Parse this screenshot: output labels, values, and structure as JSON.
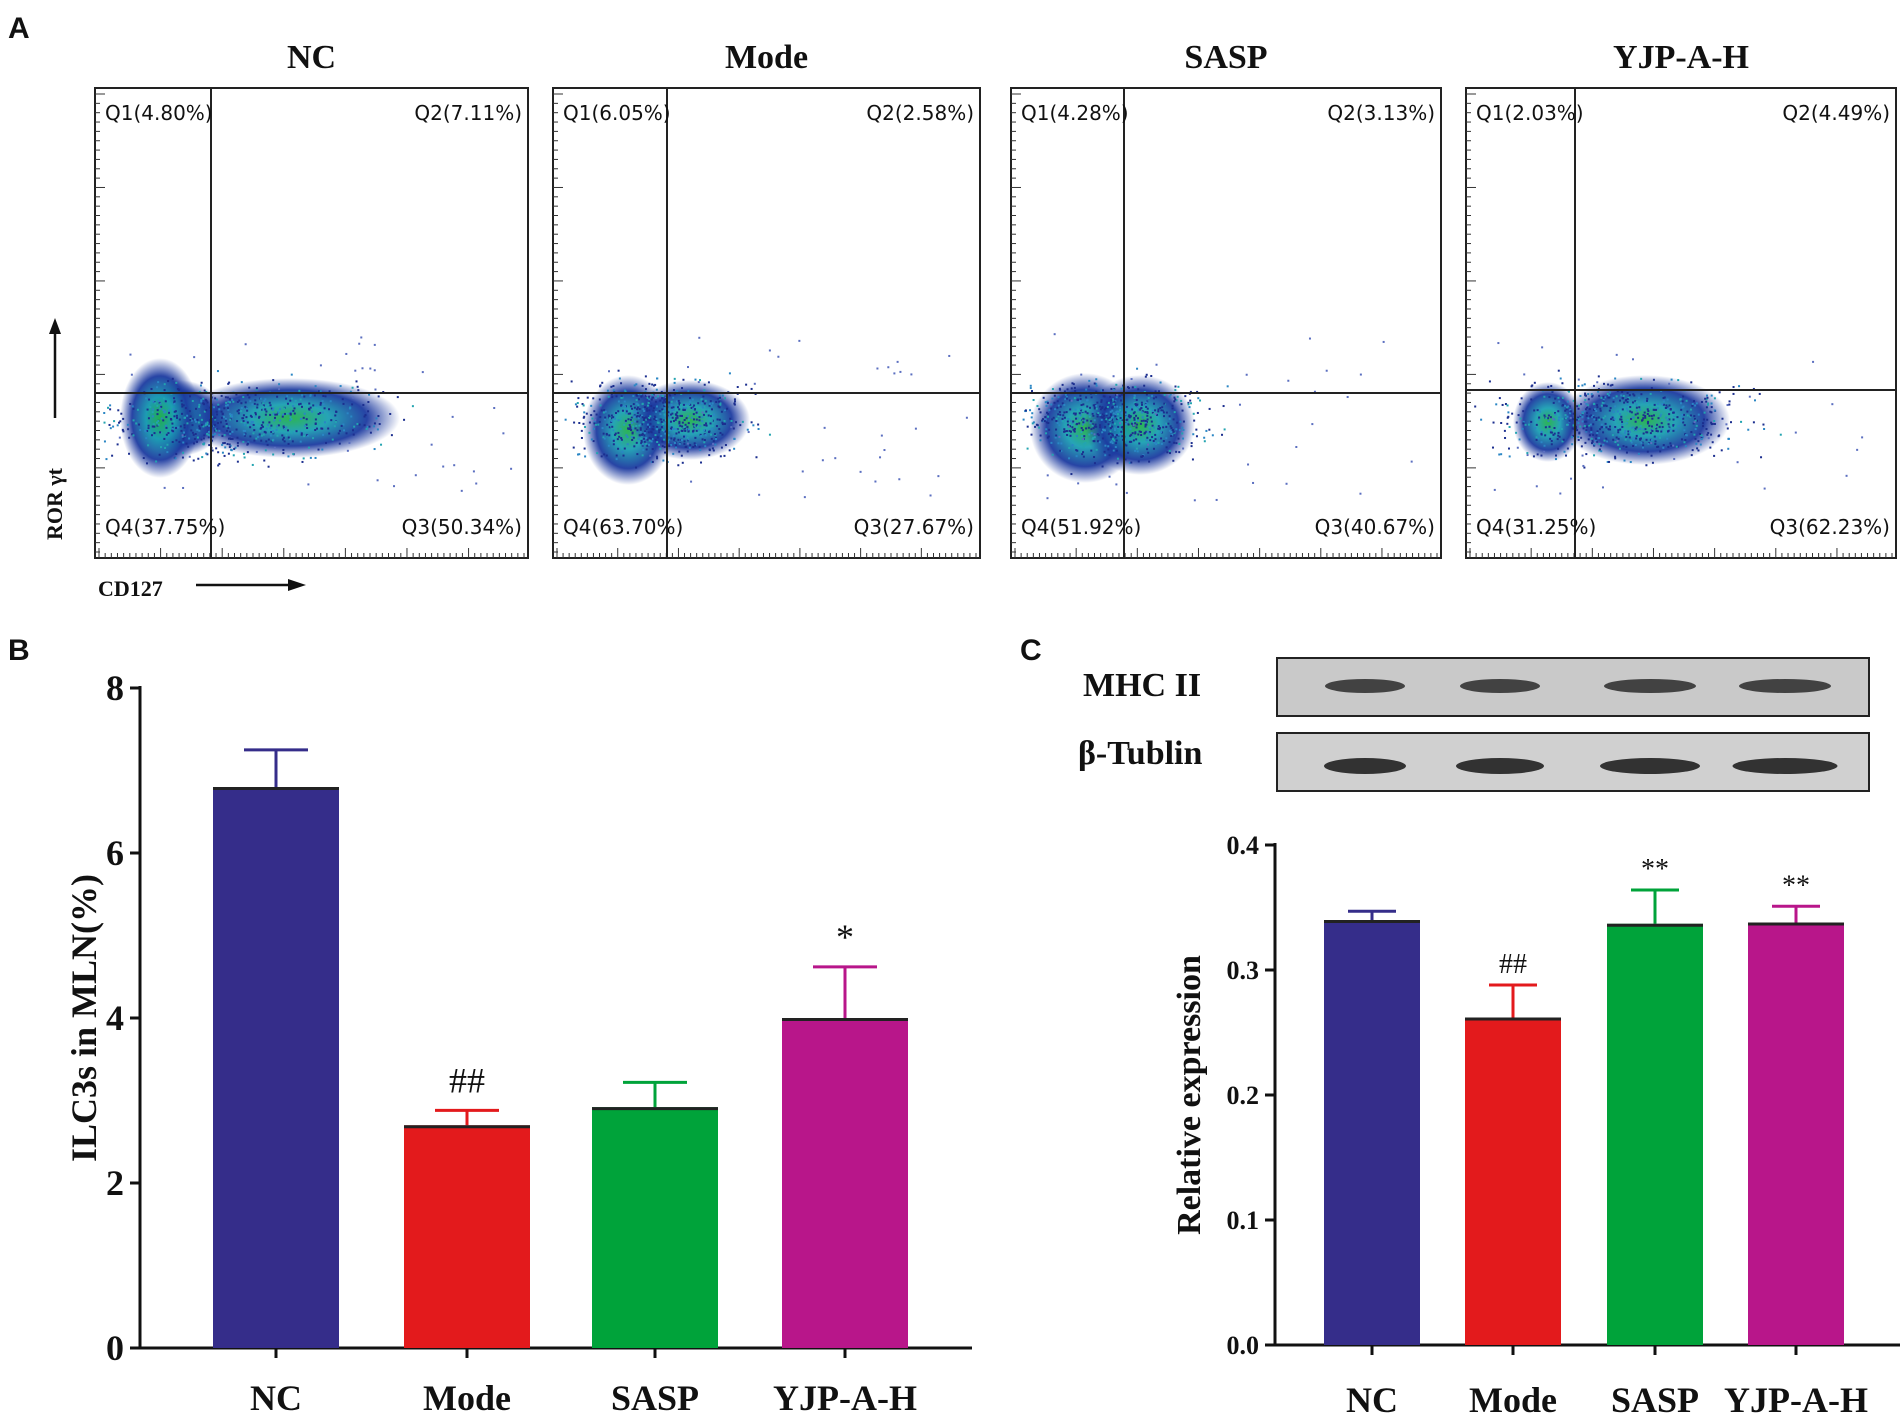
{
  "panels": {
    "A": "A",
    "B": "B",
    "C": "C"
  },
  "flow": {
    "x_axis_label": "CD127",
    "y_axis_label": "ROR γt",
    "plots": [
      {
        "title": "NC",
        "q1": "Q1(4.80%)",
        "q2": "Q2(7.11%)",
        "q3": "Q3(50.34%)",
        "q4": "Q4(37.75%)"
      },
      {
        "title": "Mode",
        "q1": "Q1(6.05%)",
        "q2": "Q2(2.58%)",
        "q3": "Q3(27.67%)",
        "q4": "Q4(63.70%)"
      },
      {
        "title": "SASP",
        "q1": "Q1(4.28%)",
        "q2": "Q2(3.13%)",
        "q3": "Q3(40.67%)",
        "q4": "Q4(51.92%)"
      },
      {
        "title": "YJP-A-H",
        "q1": "Q1(2.03%)",
        "q2": "Q2(4.49%)",
        "q3": "Q3(62.23%)",
        "q4": "Q4(31.25%)"
      }
    ]
  },
  "blot": {
    "band1": "MHC II",
    "band2": "β-Tublin"
  },
  "colors": {
    "NC": "#352d8a",
    "Mode": "#e31a1c",
    "SASP": "#00a33a",
    "YJP-A-H": "#b8168a"
  },
  "chart_data": [
    {
      "type": "bar",
      "panel": "B",
      "ylabel": "ILC3s in MLN(%)",
      "xlabel": "",
      "ylim": [
        0,
        8
      ],
      "yticks": [
        0,
        2,
        4,
        6,
        8
      ],
      "categories": [
        "NC",
        "Mode",
        "SASP",
        "YJP-A-H"
      ],
      "values": [
        6.8,
        2.7,
        2.92,
        4.0
      ],
      "errors": [
        0.45,
        0.18,
        0.3,
        0.62
      ],
      "significance": [
        "",
        "##",
        "",
        "*"
      ]
    },
    {
      "type": "bar",
      "panel": "C",
      "ylabel": "Relative expression",
      "xlabel": "",
      "ylim": [
        0,
        0.4
      ],
      "yticks": [
        "0.0",
        "0.1",
        "0.2",
        "0.3",
        "0.4"
      ],
      "categories": [
        "NC",
        "Mode",
        "SASP",
        "YJP-A-H"
      ],
      "values": [
        0.34,
        0.262,
        0.337,
        0.338
      ],
      "errors": [
        0.007,
        0.026,
        0.027,
        0.013
      ],
      "significance": [
        "",
        "##",
        "**",
        "**"
      ]
    }
  ]
}
